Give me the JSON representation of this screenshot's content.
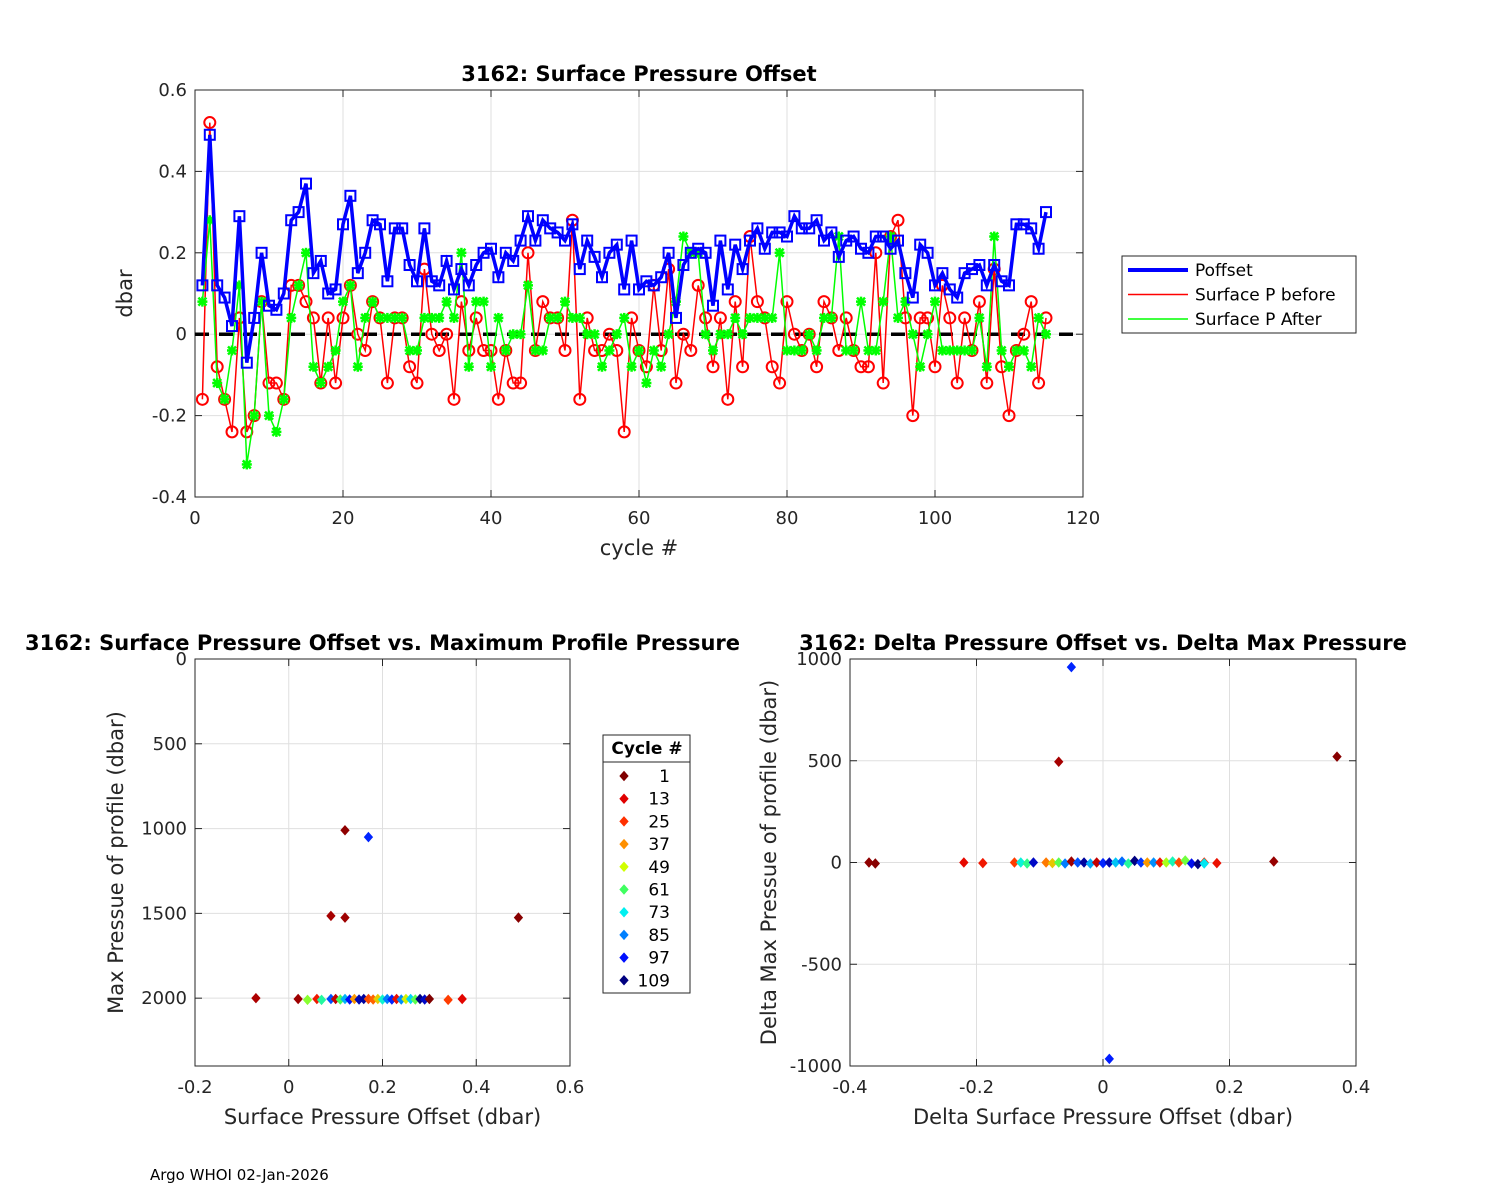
{
  "footer": "Argo WHOI 02-Jan-2026",
  "chart_data": [
    {
      "type": "line",
      "title": "3162: Surface Pressure Offset",
      "xlabel": "cycle #",
      "ylabel": "dbar",
      "xlim": [
        0,
        120
      ],
      "ylim": [
        -0.4,
        0.6
      ],
      "xticks": [
        0,
        20,
        40,
        60,
        80,
        100,
        120
      ],
      "yticks": [
        -0.4,
        -0.2,
        0,
        0.2,
        0.4,
        0.6
      ],
      "xtick_labels": [
        "0",
        "20",
        "40",
        "60",
        "80",
        "100",
        "120"
      ],
      "ytick_labels": [
        "-0.4",
        "-0.2",
        "0",
        "0.2",
        "0.4",
        "0.6"
      ],
      "grid": true,
      "legend_position": "outside-right",
      "x": [
        1,
        2,
        3,
        4,
        5,
        6,
        7,
        8,
        9,
        10,
        11,
        12,
        13,
        14,
        15,
        16,
        17,
        18,
        19,
        20,
        21,
        22,
        23,
        24,
        25,
        26,
        27,
        28,
        29,
        30,
        31,
        32,
        33,
        34,
        35,
        36,
        37,
        38,
        39,
        40,
        41,
        42,
        43,
        44,
        45,
        46,
        47,
        48,
        49,
        50,
        51,
        52,
        53,
        54,
        55,
        56,
        57,
        58,
        59,
        60,
        61,
        62,
        63,
        64,
        65,
        66,
        67,
        68,
        69,
        70,
        71,
        72,
        73,
        74,
        75,
        76,
        77,
        78,
        79,
        80,
        81,
        82,
        83,
        84,
        85,
        86,
        87,
        88,
        89,
        90,
        91,
        92,
        93,
        94,
        95,
        96,
        97,
        98,
        99,
        100,
        101,
        102,
        103,
        104,
        105,
        106,
        107,
        108,
        109,
        110,
        111,
        112,
        113,
        114,
        115
      ],
      "series": [
        {
          "name": "Poffset",
          "color": "#0000ff",
          "values": [
            0.12,
            0.49,
            0.12,
            0.09,
            0.02,
            0.29,
            -0.07,
            0.04,
            0.2,
            0.07,
            0.06,
            0.1,
            0.28,
            0.3,
            0.37,
            0.15,
            0.18,
            0.1,
            0.11,
            0.27,
            0.34,
            0.15,
            0.2,
            0.28,
            0.27,
            0.13,
            0.26,
            0.26,
            0.17,
            0.13,
            0.26,
            0.13,
            0.12,
            0.18,
            0.11,
            0.16,
            0.12,
            0.17,
            0.2,
            0.21,
            0.14,
            0.2,
            0.18,
            0.23,
            0.29,
            0.23,
            0.28,
            0.26,
            0.25,
            0.23,
            0.27,
            0.16,
            0.23,
            0.19,
            0.14,
            0.2,
            0.22,
            0.11,
            0.23,
            0.11,
            0.13,
            0.12,
            0.14,
            0.2,
            0.04,
            0.17,
            0.2,
            0.21,
            0.2,
            0.07,
            0.23,
            0.11,
            0.22,
            0.16,
            0.23,
            0.26,
            0.21,
            0.25,
            0.25,
            0.24,
            0.29,
            0.26,
            0.26,
            0.28,
            0.23,
            0.25,
            0.19,
            0.23,
            0.24,
            0.21,
            0.2,
            0.24,
            0.24,
            0.21,
            0.23,
            0.15,
            0.09,
            0.22,
            0.2,
            0.12,
            0.15,
            0.11,
            0.09,
            0.15,
            0.16,
            0.17,
            0.12,
            0.17,
            0.13,
            0.12,
            0.27,
            0.27,
            0.26,
            0.21,
            0.3
          ]
        },
        {
          "name": "Surface P before",
          "color": "#ff0000",
          "values": [
            -0.16,
            0.52,
            -0.08,
            -0.16,
            -0.24,
            0.04,
            -0.24,
            -0.2,
            0.08,
            -0.12,
            -0.12,
            -0.16,
            0.12,
            0.12,
            0.08,
            0.04,
            -0.12,
            0.04,
            -0.12,
            0.04,
            0.12,
            0.0,
            -0.04,
            0.08,
            0.04,
            -0.12,
            0.04,
            0.04,
            -0.08,
            -0.12,
            0.16,
            0.0,
            -0.04,
            0.0,
            -0.16,
            0.08,
            -0.04,
            0.04,
            -0.04,
            -0.04,
            -0.16,
            -0.04,
            -0.12,
            -0.12,
            0.2,
            -0.04,
            0.08,
            0.04,
            0.04,
            -0.04,
            0.28,
            -0.16,
            0.04,
            -0.04,
            -0.04,
            0.0,
            -0.04,
            -0.24,
            0.04,
            -0.04,
            -0.08,
            0.12,
            -0.04,
            0.16,
            -0.12,
            0.0,
            -0.04,
            0.12,
            0.04,
            -0.08,
            0.04,
            -0.16,
            0.08,
            -0.08,
            0.24,
            0.08,
            0.04,
            -0.08,
            -0.12,
            0.08,
            0.0,
            -0.04,
            0.0,
            -0.08,
            0.08,
            0.04,
            -0.04,
            0.04,
            -0.04,
            -0.08,
            -0.08,
            0.2,
            -0.12,
            0.24,
            0.28,
            0.04,
            -0.2,
            0.04,
            0.04,
            -0.08,
            0.12,
            0.04,
            -0.12,
            0.04,
            -0.04,
            0.08,
            -0.12,
            0.16,
            -0.08,
            -0.2,
            -0.04,
            0.0,
            0.08,
            -0.12,
            0.04
          ]
        },
        {
          "name": "Surface P After",
          "color": "#00ff00",
          "values": [
            0.08,
            0.28,
            -0.12,
            -0.16,
            -0.04,
            0.12,
            -0.32,
            -0.2,
            0.08,
            -0.2,
            -0.24,
            -0.16,
            0.04,
            0.12,
            0.2,
            -0.08,
            -0.12,
            -0.08,
            -0.04,
            0.08,
            0.12,
            -0.08,
            0.04,
            0.08,
            0.04,
            0.04,
            0.04,
            0.04,
            -0.04,
            -0.04,
            0.04,
            0.04,
            0.04,
            0.08,
            0.04,
            0.2,
            -0.08,
            0.08,
            0.08,
            -0.08,
            0.04,
            -0.04,
            0.0,
            0.0,
            0.12,
            -0.04,
            -0.04,
            0.04,
            0.04,
            0.08,
            0.04,
            0.04,
            0.0,
            0.0,
            -0.08,
            -0.04,
            0.0,
            0.04,
            -0.08,
            -0.04,
            -0.12,
            -0.04,
            -0.08,
            0.0,
            0.08,
            0.24,
            0.2,
            0.2,
            0.0,
            -0.04,
            0.0,
            0.0,
            0.04,
            0.0,
            0.04,
            0.04,
            0.04,
            0.04,
            0.2,
            -0.04,
            -0.04,
            -0.04,
            0.0,
            -0.04,
            0.04,
            0.04,
            0.24,
            -0.04,
            -0.04,
            0.08,
            -0.04,
            -0.04,
            0.08,
            0.24,
            0.04,
            0.08,
            0.0,
            -0.08,
            0.0,
            0.08,
            -0.04,
            -0.04,
            -0.04,
            -0.04,
            -0.04,
            0.04,
            -0.08,
            0.24,
            -0.04,
            -0.08,
            -0.04,
            -0.04,
            -0.08,
            0.04,
            0.0
          ]
        }
      ],
      "zero_line": 0
    },
    {
      "type": "scatter",
      "title": "3162: Surface Pressure Offset vs. Maximum Profile Pressure",
      "xlabel": "Surface Pressure Offset (dbar)",
      "ylabel": "Max Pressue of profile (dbar)",
      "xlim": [
        -0.2,
        0.6
      ],
      "ylim": [
        0,
        2400
      ],
      "y_reversed": true,
      "xticks": [
        -0.2,
        0,
        0.2,
        0.4,
        0.6
      ],
      "yticks": [
        0,
        500,
        1000,
        1500,
        2000
      ],
      "xtick_labels": [
        "-0.2",
        "0",
        "0.2",
        "0.4",
        "0.6"
      ],
      "ytick_labels": [
        "0",
        "500",
        "1000",
        "1500",
        "2000"
      ],
      "grid": true,
      "points": [
        {
          "x": 0.12,
          "y": 1010,
          "cycle": 3
        },
        {
          "x": 0.09,
          "y": 1515,
          "cycle": 6
        },
        {
          "x": 0.12,
          "y": 1525,
          "cycle": 5
        },
        {
          "x": 0.49,
          "y": 1525,
          "cycle": 2
        },
        {
          "x": 0.17,
          "y": 1050,
          "cycle": 100
        },
        {
          "x": -0.07,
          "y": 2000,
          "cycle": 7
        },
        {
          "x": 0.02,
          "y": 2005,
          "cycle": 5
        },
        {
          "x": 0.06,
          "y": 2005,
          "cycle": 20
        },
        {
          "x": 0.04,
          "y": 2010,
          "cycle": 58
        },
        {
          "x": 0.07,
          "y": 2010,
          "cycle": 70
        },
        {
          "x": 0.09,
          "y": 2005,
          "cycle": 95
        },
        {
          "x": 0.1,
          "y": 2005,
          "cycle": 10
        },
        {
          "x": 0.11,
          "y": 2008,
          "cycle": 64
        },
        {
          "x": 0.12,
          "y": 2005,
          "cycle": 84
        },
        {
          "x": 0.13,
          "y": 2008,
          "cycle": 103
        },
        {
          "x": 0.14,
          "y": 2005,
          "cycle": 40
        },
        {
          "x": 0.15,
          "y": 2008,
          "cycle": 110
        },
        {
          "x": 0.16,
          "y": 2005,
          "cycle": 112
        },
        {
          "x": 0.17,
          "y": 2005,
          "cycle": 30
        },
        {
          "x": 0.18,
          "y": 2008,
          "cycle": 33
        },
        {
          "x": 0.19,
          "y": 2005,
          "cycle": 46
        },
        {
          "x": 0.2,
          "y": 2008,
          "cycle": 74
        },
        {
          "x": 0.21,
          "y": 2005,
          "cycle": 90
        },
        {
          "x": 0.22,
          "y": 2008,
          "cycle": 100
        },
        {
          "x": 0.23,
          "y": 2005,
          "cycle": 18
        },
        {
          "x": 0.24,
          "y": 2008,
          "cycle": 88
        },
        {
          "x": 0.25,
          "y": 2005,
          "cycle": 50
        },
        {
          "x": 0.26,
          "y": 2005,
          "cycle": 80
        },
        {
          "x": 0.27,
          "y": 2008,
          "cycle": 62
        },
        {
          "x": 0.28,
          "y": 2005,
          "cycle": 115
        },
        {
          "x": 0.29,
          "y": 2008,
          "cycle": 108
        },
        {
          "x": 0.3,
          "y": 2005,
          "cycle": 1
        },
        {
          "x": 0.34,
          "y": 2010,
          "cycle": 28
        },
        {
          "x": 0.37,
          "y": 2005,
          "cycle": 15
        }
      ]
    },
    {
      "type": "scatter",
      "title": "3162: Delta Pressure Offset vs. Delta Max Pressure",
      "xlabel": "Delta Surface Pressure Offset (dbar)",
      "ylabel": "Delta Max Pressue of profile (dbar)",
      "xlim": [
        -0.4,
        0.4
      ],
      "ylim": [
        -1000,
        1000
      ],
      "xticks": [
        -0.4,
        -0.2,
        0,
        0.2,
        0.4
      ],
      "yticks": [
        -1000,
        -500,
        0,
        500,
        1000
      ],
      "xtick_labels": [
        "-0.4",
        "-0.2",
        "0",
        "0.2",
        "0.4"
      ],
      "ytick_labels": [
        "-1000",
        "-500",
        "0",
        "500",
        "1000"
      ],
      "grid": true,
      "points": [
        {
          "x": -0.05,
          "y": 960,
          "cycle": 100
        },
        {
          "x": 0.01,
          "y": -965,
          "cycle": 101
        },
        {
          "x": -0.07,
          "y": 495,
          "cycle": 6
        },
        {
          "x": 0.37,
          "y": 520,
          "cycle": 2
        },
        {
          "x": -0.37,
          "y": 0,
          "cycle": 3
        },
        {
          "x": -0.36,
          "y": -5,
          "cycle": 2
        },
        {
          "x": 0.27,
          "y": 5,
          "cycle": 4
        },
        {
          "x": -0.22,
          "y": 0,
          "cycle": 16
        },
        {
          "x": -0.19,
          "y": -3,
          "cycle": 20
        },
        {
          "x": -0.14,
          "y": 0,
          "cycle": 28
        },
        {
          "x": -0.13,
          "y": 0,
          "cycle": 75
        },
        {
          "x": -0.12,
          "y": -5,
          "cycle": 68
        },
        {
          "x": -0.11,
          "y": 0,
          "cycle": 108
        },
        {
          "x": -0.09,
          "y": 0,
          "cycle": 36
        },
        {
          "x": -0.08,
          "y": -3,
          "cycle": 45
        },
        {
          "x": -0.07,
          "y": 0,
          "cycle": 62
        },
        {
          "x": -0.06,
          "y": -5,
          "cycle": 90
        },
        {
          "x": -0.05,
          "y": 5,
          "cycle": 5
        },
        {
          "x": -0.04,
          "y": 0,
          "cycle": 95
        },
        {
          "x": -0.03,
          "y": 0,
          "cycle": 112
        },
        {
          "x": -0.02,
          "y": -5,
          "cycle": 85
        },
        {
          "x": -0.01,
          "y": 0,
          "cycle": 10
        },
        {
          "x": 0.0,
          "y": -3,
          "cycle": 100
        },
        {
          "x": 0.01,
          "y": 0,
          "cycle": 110
        },
        {
          "x": 0.02,
          "y": 0,
          "cycle": 82
        },
        {
          "x": 0.03,
          "y": 5,
          "cycle": 92
        },
        {
          "x": 0.04,
          "y": -5,
          "cycle": 70
        },
        {
          "x": 0.05,
          "y": 8,
          "cycle": 115
        },
        {
          "x": 0.06,
          "y": 0,
          "cycle": 98
        },
        {
          "x": 0.07,
          "y": 0,
          "cycle": 40
        },
        {
          "x": 0.08,
          "y": 0,
          "cycle": 88
        },
        {
          "x": 0.09,
          "y": 0,
          "cycle": 20
        },
        {
          "x": 0.1,
          "y": 0,
          "cycle": 55
        },
        {
          "x": 0.11,
          "y": 5,
          "cycle": 72
        },
        {
          "x": 0.12,
          "y": 0,
          "cycle": 30
        },
        {
          "x": 0.13,
          "y": 10,
          "cycle": 60
        },
        {
          "x": 0.14,
          "y": -5,
          "cycle": 104
        },
        {
          "x": 0.16,
          "y": 0,
          "cycle": 25
        },
        {
          "x": 0.15,
          "y": -8,
          "cycle": 115
        },
        {
          "x": 0.16,
          "y": -5,
          "cycle": 78
        },
        {
          "x": 0.18,
          "y": -3,
          "cycle": 18
        }
      ]
    }
  ],
  "legend_top": {
    "entries": [
      "Poffset",
      "Surface P before",
      "Surface P After"
    ]
  },
  "colorbar_legend": {
    "title": "Cycle #",
    "labels": [
      "1",
      "13",
      "25",
      "37",
      "49",
      "61",
      "73",
      "85",
      "97",
      "109"
    ],
    "colors": [
      "#800000",
      "#e00000",
      "#ff3000",
      "#ff9000",
      "#d0ff00",
      "#40ff60",
      "#00f0f0",
      "#0080ff",
      "#0010ff",
      "#000080"
    ]
  }
}
